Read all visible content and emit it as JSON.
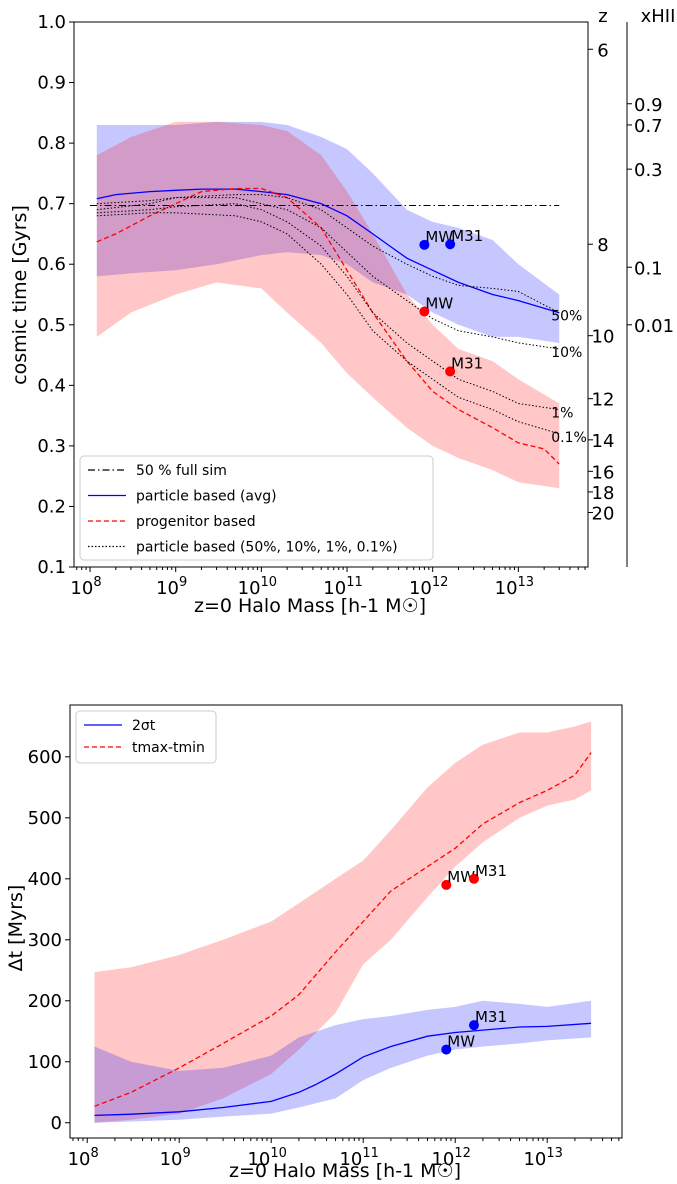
{
  "chart_data": [
    {
      "type": "line",
      "title": "",
      "xlabel": "z=0 Halo Mass [h-1 M☉]",
      "ylabel": "cosmic time [Gyrs]",
      "xscale": "log",
      "xlim": [
        65000000.0,
        65000000000000.0
      ],
      "ylim": [
        0.1,
        1.0
      ],
      "xticks": [
        {
          "v": 100000000.0,
          "base": "10",
          "exp": "8"
        },
        {
          "v": 1000000000.0,
          "base": "10",
          "exp": "9"
        },
        {
          "v": 10000000000.0,
          "base": "10",
          "exp": "10"
        },
        {
          "v": 100000000000.0,
          "base": "10",
          "exp": "11"
        },
        {
          "v": 1000000000000.0,
          "base": "10",
          "exp": "12"
        },
        {
          "v": 10000000000000.0,
          "base": "10",
          "exp": "13"
        }
      ],
      "yticks": [
        "0.1",
        "0.2",
        "0.3",
        "0.4",
        "0.5",
        "0.6",
        "0.7",
        "0.8",
        "0.9",
        "1.0"
      ],
      "legend_position": "lower-left",
      "legend": [
        {
          "label": "50 % full sim",
          "style": "dashdot",
          "color": "#000000"
        },
        {
          "label": "particle based (avg)",
          "style": "solid",
          "color": "#0000ff"
        },
        {
          "label": "progenitor based",
          "style": "dashed",
          "color": "#ff0000"
        },
        {
          "label": "particle based (50%, 10%, 1%, 0.1%)",
          "style": "dotted",
          "color": "#000000"
        }
      ],
      "z_axis": {
        "label": "z",
        "ticks": [
          {
            "t": 0.955,
            "label": "6"
          },
          {
            "t": 0.633,
            "label": "8"
          },
          {
            "t": 0.482,
            "label": "10"
          },
          {
            "t": 0.378,
            "label": "12"
          },
          {
            "t": 0.31,
            "label": "14"
          },
          {
            "t": 0.258,
            "label": "16"
          },
          {
            "t": 0.224,
            "label": "18"
          },
          {
            "t": 0.19,
            "label": "20"
          }
        ]
      },
      "xhii_axis": {
        "label": "xHII",
        "ticks": [
          {
            "t": 0.865,
            "label": "0.9"
          },
          {
            "t": 0.83,
            "label": "0.7"
          },
          {
            "t": 0.757,
            "label": "0.3"
          },
          {
            "t": 0.595,
            "label": "0.1"
          },
          {
            "t": 0.5,
            "label": "0.01"
          }
        ]
      },
      "reference_line": {
        "name": "50 % full sim",
        "y": 0.697,
        "x_range": [
          100000000.0,
          30000000000000.0
        ]
      },
      "bands": [
        {
          "name": "particle based range",
          "color": "#0000ff",
          "opacity": 0.22,
          "x": [
            120000000.0,
            300000000.0,
            1000000000.0,
            3000000000.0,
            10000000000.0,
            20000000000.0,
            50000000000.0,
            100000000000.0,
            200000000000.0,
            500000000000.0,
            1000000000000.0,
            2000000000000.0,
            5000000000000.0,
            10000000000000.0,
            30000000000000.0
          ],
          "upper": [
            0.83,
            0.83,
            0.83,
            0.835,
            0.835,
            0.83,
            0.81,
            0.79,
            0.75,
            0.69,
            0.67,
            0.66,
            0.64,
            0.6,
            0.55
          ],
          "lower": [
            0.58,
            0.585,
            0.59,
            0.6,
            0.615,
            0.62,
            0.615,
            0.6,
            0.57,
            0.55,
            0.52,
            0.5,
            0.48,
            0.48,
            0.47
          ]
        },
        {
          "name": "progenitor based range",
          "color": "#ff0000",
          "opacity": 0.22,
          "x": [
            120000000.0,
            300000000.0,
            1000000000.0,
            3000000000.0,
            10000000000.0,
            20000000000.0,
            50000000000.0,
            100000000000.0,
            200000000000.0,
            500000000000.0,
            1000000000000.0,
            2000000000000.0,
            5000000000000.0,
            10000000000000.0,
            30000000000000.0
          ],
          "upper": [
            0.78,
            0.81,
            0.835,
            0.835,
            0.83,
            0.82,
            0.78,
            0.72,
            0.65,
            0.55,
            0.5,
            0.46,
            0.44,
            0.41,
            0.37
          ],
          "lower": [
            0.48,
            0.52,
            0.55,
            0.57,
            0.56,
            0.52,
            0.47,
            0.42,
            0.38,
            0.33,
            0.3,
            0.28,
            0.26,
            0.24,
            0.23
          ]
        }
      ],
      "series": [
        {
          "name": "particle based (avg)",
          "color": "#0000ff",
          "style": "solid",
          "x": [
            120000000.0,
            200000000.0,
            500000000.0,
            1000000000.0,
            2000000000.0,
            5000000000.0,
            10000000000.0,
            20000000000.0,
            50000000000.0,
            100000000000.0,
            200000000000.0,
            500000000000.0,
            1000000000000.0,
            2000000000000.0,
            5000000000000.0,
            10000000000000.0,
            30000000000000.0
          ],
          "y": [
            0.708,
            0.715,
            0.72,
            0.722,
            0.724,
            0.724,
            0.72,
            0.715,
            0.7,
            0.68,
            0.65,
            0.61,
            0.59,
            0.57,
            0.55,
            0.54,
            0.52
          ]
        },
        {
          "name": "progenitor based",
          "color": "#ff0000",
          "style": "dashed",
          "x": [
            120000000.0,
            200000000.0,
            500000000.0,
            1000000000.0,
            2000000000.0,
            5000000000.0,
            10000000000.0,
            20000000000.0,
            50000000000.0,
            100000000000.0,
            200000000000.0,
            500000000000.0,
            1000000000000.0,
            2000000000000.0,
            5000000000000.0,
            10000000000000.0,
            20000000000000.0,
            30000000000000.0
          ],
          "y": [
            0.637,
            0.65,
            0.68,
            0.7,
            0.72,
            0.725,
            0.725,
            0.71,
            0.66,
            0.59,
            0.52,
            0.44,
            0.39,
            0.36,
            0.33,
            0.305,
            0.295,
            0.27
          ]
        },
        {
          "name": "50%",
          "color": "#000000",
          "style": "dotted",
          "x": [
            120000000.0,
            500000000.0,
            1000000000.0,
            5000000000.0,
            10000000000.0,
            20000000000.0,
            50000000000.0,
            100000000000.0,
            200000000000.0,
            500000000000.0,
            1000000000000.0,
            2000000000000.0,
            5000000000000.0,
            10000000000000.0,
            30000000000000.0
          ],
          "y": [
            0.7,
            0.705,
            0.71,
            0.715,
            0.715,
            0.71,
            0.69,
            0.66,
            0.63,
            0.6,
            0.58,
            0.565,
            0.56,
            0.555,
            0.52
          ],
          "end_label": "50%"
        },
        {
          "name": "10%",
          "color": "#000000",
          "style": "dotted",
          "x": [
            120000000.0,
            500000000.0,
            1000000000.0,
            5000000000.0,
            10000000000.0,
            20000000000.0,
            50000000000.0,
            100000000000.0,
            200000000000.0,
            500000000000.0,
            1000000000000.0,
            2000000000000.0,
            5000000000000.0,
            10000000000000.0,
            30000000000000.0
          ],
          "y": [
            0.69,
            0.7,
            0.71,
            0.71,
            0.7,
            0.69,
            0.66,
            0.62,
            0.58,
            0.54,
            0.51,
            0.49,
            0.48,
            0.47,
            0.46
          ],
          "end_label": "10%"
        },
        {
          "name": "1%",
          "color": "#000000",
          "style": "dotted",
          "x": [
            120000000.0,
            500000000.0,
            1000000000.0,
            5000000000.0,
            10000000000.0,
            20000000000.0,
            50000000000.0,
            100000000000.0,
            200000000000.0,
            500000000000.0,
            1000000000000.0,
            2000000000000.0,
            5000000000000.0,
            10000000000000.0,
            30000000000000.0
          ],
          "y": [
            0.685,
            0.69,
            0.695,
            0.7,
            0.69,
            0.67,
            0.63,
            0.58,
            0.52,
            0.47,
            0.44,
            0.41,
            0.39,
            0.37,
            0.36
          ],
          "end_label": "1%"
        },
        {
          "name": "0.1%",
          "color": "#000000",
          "style": "dotted",
          "x": [
            120000000.0,
            500000000.0,
            1000000000.0,
            5000000000.0,
            10000000000.0,
            20000000000.0,
            50000000000.0,
            100000000000.0,
            200000000000.0,
            500000000000.0,
            1000000000000.0,
            2000000000000.0,
            5000000000000.0,
            10000000000000.0,
            30000000000000.0
          ],
          "y": [
            0.68,
            0.685,
            0.685,
            0.68,
            0.67,
            0.65,
            0.6,
            0.55,
            0.49,
            0.44,
            0.41,
            0.38,
            0.36,
            0.34,
            0.32
          ],
          "end_label": "0.1%"
        }
      ],
      "points": [
        {
          "label": "MW",
          "x": 800000000000.0,
          "y": 0.632,
          "color": "#0000ff"
        },
        {
          "label": "M31",
          "x": 1600000000000.0,
          "y": 0.633,
          "color": "#0000ff"
        },
        {
          "label": "MW",
          "x": 800000000000.0,
          "y": 0.522,
          "color": "#ff0000"
        },
        {
          "label": "M31",
          "x": 1600000000000.0,
          "y": 0.423,
          "color": "#ff0000"
        }
      ]
    },
    {
      "type": "line",
      "title": "",
      "xlabel": "z=0 Halo Mass [h-1 M☉]",
      "ylabel": "Δt [Myrs]",
      "xscale": "log",
      "xlim": [
        65000000.0,
        65000000000000.0
      ],
      "ylim": [
        -25,
        685
      ],
      "xticks": [
        {
          "v": 100000000.0,
          "base": "10",
          "exp": "8"
        },
        {
          "v": 1000000000.0,
          "base": "10",
          "exp": "9"
        },
        {
          "v": 10000000000.0,
          "base": "10",
          "exp": "10"
        },
        {
          "v": 100000000000.0,
          "base": "10",
          "exp": "11"
        },
        {
          "v": 1000000000000.0,
          "base": "10",
          "exp": "12"
        },
        {
          "v": 10000000000000.0,
          "base": "10",
          "exp": "13"
        }
      ],
      "yticks": [
        "0",
        "100",
        "200",
        "300",
        "400",
        "500",
        "600"
      ],
      "legend_position": "upper-left",
      "legend": [
        {
          "label": "2σt",
          "style": "solid",
          "color": "#0000ff"
        },
        {
          "label": "tmax-tmin",
          "style": "dashed",
          "color": "#ff0000"
        }
      ],
      "bands": [
        {
          "name": "tmax-tmin range",
          "color": "#ff0000",
          "opacity": 0.22,
          "x": [
            120000000.0,
            300000000.0,
            1000000000.0,
            3000000000.0,
            10000000000.0,
            20000000000.0,
            50000000000.0,
            100000000000.0,
            200000000000.0,
            500000000000.0,
            1000000000000.0,
            2000000000000.0,
            5000000000000.0,
            10000000000000.0,
            20000000000000.0,
            30000000000000.0
          ],
          "upper": [
            247,
            255,
            275,
            300,
            330,
            360,
            400,
            430,
            480,
            550,
            590,
            620,
            640,
            640,
            650,
            658
          ],
          "lower": [
            0,
            5,
            15,
            40,
            80,
            120,
            180,
            260,
            300,
            370,
            420,
            460,
            500,
            520,
            530,
            545
          ]
        },
        {
          "name": "2σt range",
          "color": "#0000ff",
          "opacity": 0.22,
          "x": [
            120000000.0,
            300000000.0,
            1000000000.0,
            3000000000.0,
            10000000000.0,
            20000000000.0,
            50000000000.0,
            100000000000.0,
            200000000000.0,
            500000000000.0,
            1000000000000.0,
            2000000000000.0,
            5000000000000.0,
            10000000000000.0,
            30000000000000.0
          ],
          "upper": [
            125,
            100,
            85,
            90,
            110,
            140,
            160,
            170,
            175,
            185,
            190,
            200,
            195,
            190,
            200
          ],
          "lower": [
            0,
            2,
            5,
            10,
            15,
            25,
            40,
            70,
            90,
            110,
            120,
            125,
            130,
            135,
            140
          ]
        }
      ],
      "series": [
        {
          "name": "2σt",
          "color": "#0000ff",
          "style": "solid",
          "x": [
            120000000.0,
            300000000.0,
            1000000000.0,
            3000000000.0,
            10000000000.0,
            20000000000.0,
            30000000000.0,
            50000000000.0,
            100000000000.0,
            200000000000.0,
            500000000000.0,
            1000000000000.0,
            2000000000000.0,
            5000000000000.0,
            10000000000000.0,
            30000000000000.0
          ],
          "y": [
            12,
            14,
            18,
            25,
            35,
            50,
            62,
            80,
            108,
            125,
            142,
            148,
            152,
            157,
            158,
            163
          ]
        },
        {
          "name": "tmax-tmin",
          "color": "#ff0000",
          "style": "dashed",
          "x": [
            120000000.0,
            300000000.0,
            1000000000.0,
            3000000000.0,
            10000000000.0,
            20000000000.0,
            50000000000.0,
            100000000000.0,
            200000000000.0,
            500000000000.0,
            1000000000000.0,
            2000000000000.0,
            5000000000000.0,
            10000000000000.0,
            20000000000000.0,
            30000000000000.0
          ],
          "y": [
            27,
            50,
            90,
            130,
            175,
            210,
            280,
            330,
            380,
            420,
            450,
            490,
            525,
            545,
            570,
            607
          ]
        }
      ],
      "points": [
        {
          "label": "MW",
          "x": 800000000000.0,
          "y": 390,
          "color": "#ff0000"
        },
        {
          "label": "M31",
          "x": 1600000000000.0,
          "y": 400,
          "color": "#ff0000"
        },
        {
          "label": "MW",
          "x": 800000000000.0,
          "y": 120,
          "color": "#0000ff"
        },
        {
          "label": "M31",
          "x": 1600000000000.0,
          "y": 160,
          "color": "#0000ff"
        }
      ]
    }
  ]
}
